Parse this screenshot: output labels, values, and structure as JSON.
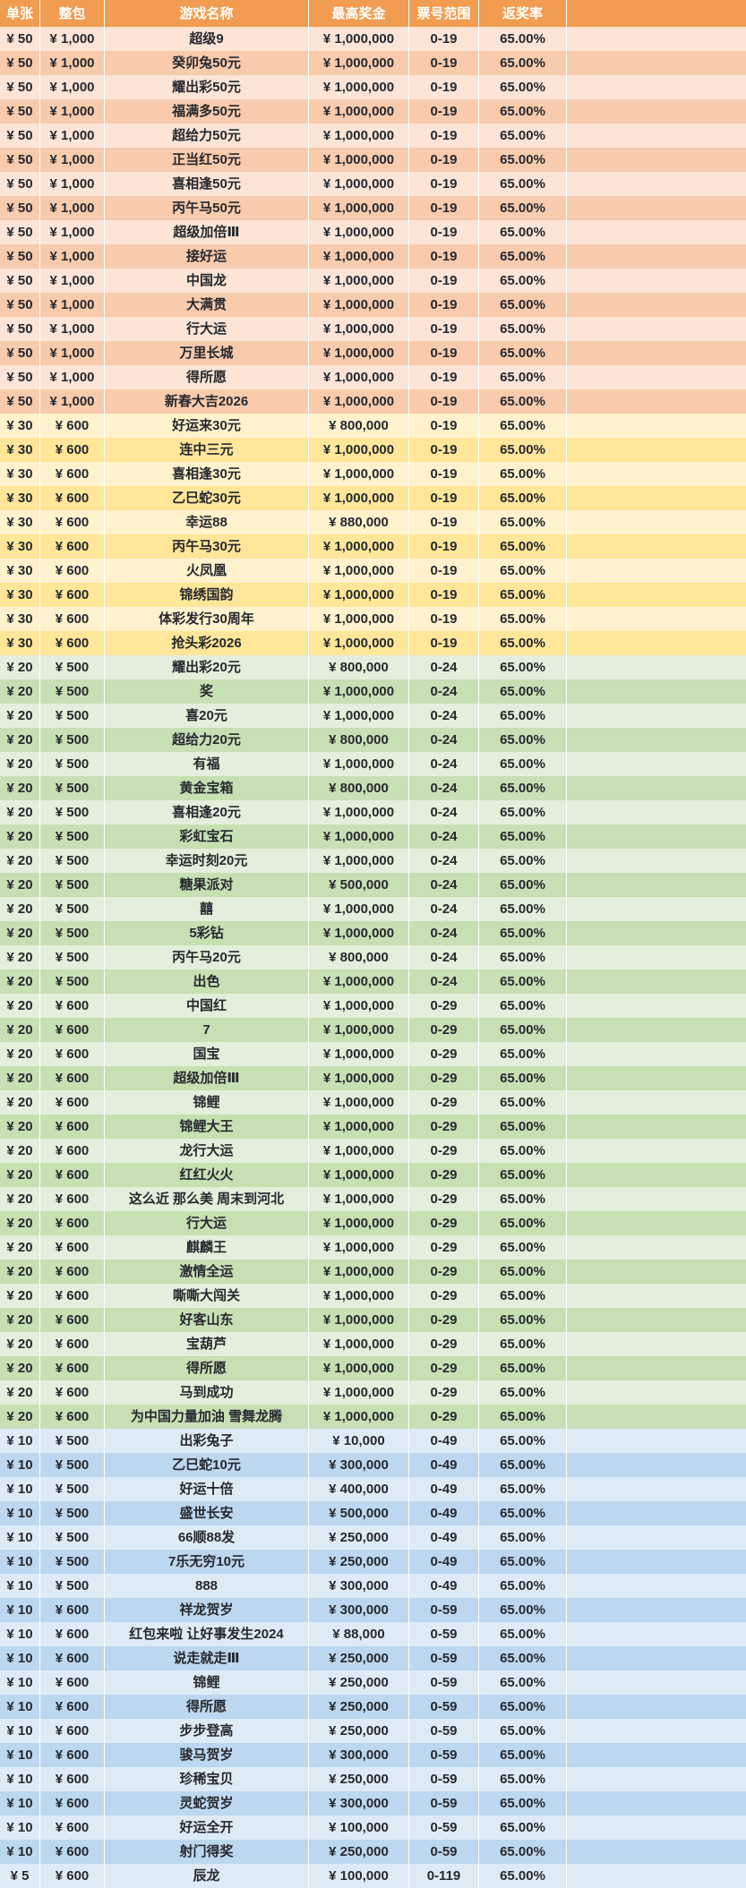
{
  "colors": {
    "header_bg": "#F09D51",
    "header_text": "#FFFFFF",
    "text": "#26282E",
    "orange_light": "#FCE4D6",
    "orange_dark": "#F8CBAD",
    "yellow_light": "#FFF2CC",
    "yellow_dark": "#FFE699",
    "green_light": "#E2EFDA",
    "green_dark": "#C6E0B4",
    "blue_light": "#DDEBF7",
    "blue_dark": "#BDD7EE"
  },
  "table": {
    "columns": [
      "单张",
      "整包",
      "游戏名称",
      "最高奖金",
      "票号范围",
      "返奖率"
    ],
    "sections": [
      {
        "color": "orange",
        "price": "¥ 50",
        "pack": "¥ 1,000",
        "range": "0-19",
        "rate": "65.00%",
        "games": [
          {
            "name": "超级9",
            "prize": "¥ 1,000,000"
          },
          {
            "name": "癸卯兔50元",
            "prize": "¥ 1,000,000"
          },
          {
            "name": "耀出彩50元",
            "prize": "¥ 1,000,000"
          },
          {
            "name": "福满多50元",
            "prize": "¥ 1,000,000"
          },
          {
            "name": "超给力50元",
            "prize": "¥ 1,000,000"
          },
          {
            "name": "正当红50元",
            "prize": "¥ 1,000,000"
          },
          {
            "name": "喜相逢50元",
            "prize": "¥ 1,000,000"
          },
          {
            "name": "丙午马50元",
            "prize": "¥ 1,000,000"
          },
          {
            "name": "超级加倍Ⅲ",
            "prize": "¥ 1,000,000"
          },
          {
            "name": "接好运",
            "prize": "¥ 1,000,000"
          },
          {
            "name": "中国龙",
            "prize": "¥ 1,000,000"
          },
          {
            "name": "大满贯",
            "prize": "¥ 1,000,000"
          },
          {
            "name": "行大运",
            "prize": "¥ 1,000,000"
          },
          {
            "name": "万里长城",
            "prize": "¥ 1,000,000"
          },
          {
            "name": "得所愿",
            "prize": "¥ 1,000,000"
          },
          {
            "name": "新春大吉2026",
            "prize": "¥ 1,000,000"
          }
        ]
      },
      {
        "color": "yellow",
        "price": "¥ 30",
        "pack": "¥ 600",
        "range": "0-19",
        "rate": "65.00%",
        "games": [
          {
            "name": "好运来30元",
            "prize": "¥ 800,000"
          },
          {
            "name": "连中三元",
            "prize": "¥ 1,000,000"
          },
          {
            "name": "喜相逢30元",
            "prize": "¥ 1,000,000"
          },
          {
            "name": "乙巳蛇30元",
            "prize": "¥ 1,000,000"
          },
          {
            "name": "幸运88",
            "prize": "¥ 880,000"
          },
          {
            "name": "丙午马30元",
            "prize": "¥ 1,000,000"
          },
          {
            "name": "火凤凰",
            "prize": "¥ 1,000,000"
          },
          {
            "name": "锦绣国韵",
            "prize": "¥ 1,000,000"
          },
          {
            "name": "体彩发行30周年",
            "prize": "¥ 1,000,000"
          },
          {
            "name": "抢头彩2026",
            "prize": "¥ 1,000,000"
          }
        ]
      },
      {
        "color": "green",
        "price": "¥ 20",
        "pack": "¥ 500",
        "range": "0-24",
        "rate": "65.00%",
        "games": [
          {
            "name": "耀出彩20元",
            "prize": "¥ 800,000"
          },
          {
            "name": "奖",
            "prize": "¥ 1,000,000"
          },
          {
            "name": "喜20元",
            "prize": "¥ 1,000,000"
          },
          {
            "name": "超给力20元",
            "prize": "¥ 800,000"
          },
          {
            "name": "有福",
            "prize": "¥ 1,000,000"
          },
          {
            "name": "黄金宝箱",
            "prize": "¥ 800,000"
          },
          {
            "name": "喜相逢20元",
            "prize": "¥ 1,000,000"
          },
          {
            "name": "彩虹宝石",
            "prize": "¥ 1,000,000"
          },
          {
            "name": "幸运时刻20元",
            "prize": "¥ 1,000,000"
          },
          {
            "name": "糖果派对",
            "prize": "¥ 500,000"
          },
          {
            "name": "囍",
            "prize": "¥ 1,000,000"
          },
          {
            "name": "5彩钻",
            "prize": "¥ 1,000,000"
          },
          {
            "name": "丙午马20元",
            "prize": "¥ 800,000"
          },
          {
            "name": "出色",
            "prize": "¥ 1,000,000"
          }
        ]
      },
      {
        "color": "green",
        "price": "¥ 20",
        "pack": "¥ 600",
        "range": "0-29",
        "rate": "65.00%",
        "games": [
          {
            "name": "中国红",
            "prize": "¥ 1,000,000"
          },
          {
            "name": "7",
            "prize": "¥ 1,000,000"
          },
          {
            "name": "国宝",
            "prize": "¥ 1,000,000"
          },
          {
            "name": "超级加倍Ⅲ",
            "prize": "¥ 1,000,000"
          },
          {
            "name": "锦鲤",
            "prize": "¥ 1,000,000"
          },
          {
            "name": "锦鲤大王",
            "prize": "¥ 1,000,000"
          },
          {
            "name": "龙行大运",
            "prize": "¥ 1,000,000"
          },
          {
            "name": "红红火火",
            "prize": "¥ 1,000,000"
          },
          {
            "name": "这么近 那么美 周末到河北",
            "prize": "¥ 1,000,000"
          },
          {
            "name": "行大运",
            "prize": "¥ 1,000,000"
          },
          {
            "name": "麒麟王",
            "prize": "¥ 1,000,000"
          },
          {
            "name": "激情全运",
            "prize": "¥ 1,000,000"
          },
          {
            "name": "嘶嘶大闯关",
            "prize": "¥ 1,000,000"
          },
          {
            "name": "好客山东",
            "prize": "¥ 1,000,000"
          },
          {
            "name": "宝葫芦",
            "prize": "¥ 1,000,000"
          },
          {
            "name": "得所愿",
            "prize": "¥ 1,000,000"
          },
          {
            "name": "马到成功",
            "prize": "¥ 1,000,000"
          },
          {
            "name": "为中国力量加油 雪舞龙腾",
            "prize": "¥ 1,000,000"
          }
        ]
      },
      {
        "color": "blue",
        "price": "¥ 10",
        "pack": "¥ 500",
        "range": "0-49",
        "rate": "65.00%",
        "games": [
          {
            "name": "出彩兔子",
            "prize": "¥ 10,000"
          },
          {
            "name": "乙巳蛇10元",
            "prize": "¥ 300,000"
          },
          {
            "name": "好运十倍",
            "prize": "¥ 400,000"
          },
          {
            "name": "盛世长安",
            "prize": "¥ 500,000"
          },
          {
            "name": "66顺88发",
            "prize": "¥ 250,000"
          },
          {
            "name": "7乐无穷10元",
            "prize": "¥ 250,000"
          },
          {
            "name": "888",
            "prize": "¥ 300,000"
          }
        ]
      },
      {
        "color": "blue",
        "price": "¥ 10",
        "pack": "¥ 600",
        "range": "0-59",
        "rate": "65.00%",
        "games": [
          {
            "name": "祥龙贺岁",
            "prize": "¥ 300,000"
          },
          {
            "name": "红包来啦 让好事发生2024",
            "prize": "¥ 88,000"
          },
          {
            "name": "说走就走Ⅲ",
            "prize": "¥ 250,000"
          },
          {
            "name": "锦鲤",
            "prize": "¥ 250,000"
          },
          {
            "name": "得所愿",
            "prize": "¥ 250,000"
          },
          {
            "name": "步步登高",
            "prize": "¥ 250,000"
          },
          {
            "name": "骏马贺岁",
            "prize": "¥ 300,000"
          },
          {
            "name": "珍稀宝贝",
            "prize": "¥ 250,000"
          },
          {
            "name": "灵蛇贺岁",
            "prize": "¥ 300,000"
          },
          {
            "name": "好运全开",
            "prize": "¥ 100,000"
          },
          {
            "name": "射门得奖",
            "prize": "¥ 250,000"
          }
        ]
      },
      {
        "color": "blue",
        "price": "¥ 5",
        "pack": "¥ 600",
        "range": "0-119",
        "rate": "65.00%",
        "games": [
          {
            "name": "辰龙",
            "prize": "¥ 100,000"
          }
        ]
      }
    ]
  }
}
